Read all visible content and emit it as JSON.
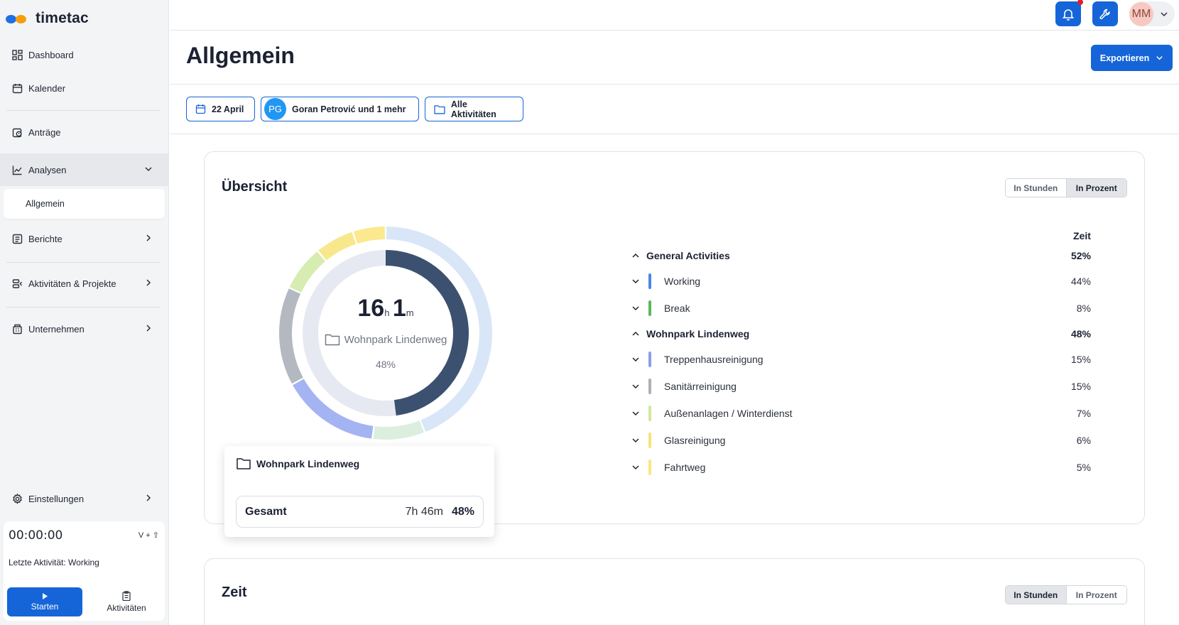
{
  "app": {
    "name": "timetac"
  },
  "sidebar": {
    "items": [
      {
        "label": "Dashboard",
        "icon": "dashboard-icon"
      },
      {
        "label": "Kalender",
        "icon": "calendar-icon"
      },
      {
        "label": "Anträge",
        "icon": "request-icon"
      },
      {
        "label": "Analysen",
        "icon": "chart-icon"
      },
      {
        "label": "Berichte",
        "icon": "report-icon"
      },
      {
        "label": "Aktivitäten & Projekte",
        "icon": "activities-icon"
      },
      {
        "label": "Unternehmen",
        "icon": "company-icon"
      },
      {
        "label": "Einstellungen",
        "icon": "settings-icon"
      }
    ],
    "subitem": "Allgemein",
    "timer": {
      "value": "00:00:00",
      "shortcut": "V + ⇧",
      "last_activity": "Letzte Aktivität: Working",
      "start_label": "Starten",
      "activities_label": "Aktivitäten"
    }
  },
  "topbar": {
    "avatar_initials": "MM"
  },
  "page": {
    "title": "Allgemein",
    "export_label": "Exportieren"
  },
  "filters": {
    "date": "22 April",
    "user_initials": "PG",
    "user": "Goran Petrović und 1 mehr",
    "activities": "Alle Aktivitäten"
  },
  "overview": {
    "title": "Übersicht",
    "toggle": [
      "In Stunden",
      "In Prozent"
    ],
    "toggle_active": "In Prozent",
    "center": {
      "hours": "16",
      "hours_unit": "h",
      "minutes": "1",
      "minutes_unit": "m",
      "project": "Wohnpark Lindenweg",
      "percent": "48%"
    },
    "tooltip": {
      "title": "Wohnpark Lindenweg",
      "total_label": "Gesamt",
      "total_time": "7h 46m",
      "total_percent": "48%"
    },
    "table_header": "Zeit",
    "groups": [
      {
        "name": "General Activities",
        "percent": "52%",
        "items": [
          {
            "name": "Working",
            "percent": "44%",
            "color": "#4a86e8"
          },
          {
            "name": "Break",
            "percent": "8%",
            "color": "#5cb85c"
          }
        ]
      },
      {
        "name": "Wohnpark Lindenweg",
        "percent": "48%",
        "items": [
          {
            "name": "Treppenhausreinigung",
            "percent": "15%",
            "color": "#8f9ee8"
          },
          {
            "name": "Sanitärreinigung",
            "percent": "15%",
            "color": "#aab0b8"
          },
          {
            "name": "Außenanlagen / Winterdienst",
            "percent": "7%",
            "color": "#cfe8a0"
          },
          {
            "name": "Glasreinigung",
            "percent": "6%",
            "color": "#f7e37a"
          },
          {
            "name": "Fahrtweg",
            "percent": "5%",
            "color": "#f9e67f"
          }
        ]
      }
    ],
    "donut_inner": [
      {
        "name": "Wohnpark Lindenweg",
        "value": 48,
        "color": "#3c5170"
      },
      {
        "name": "General Activities",
        "value": 52,
        "color": "#e6e9f1"
      }
    ],
    "donut_outer": [
      {
        "name": "Working",
        "value": 44,
        "color": "#d8e6f8"
      },
      {
        "name": "Break",
        "value": 8,
        "color": "#dcefde"
      },
      {
        "name": "Treppenhausreinigung",
        "value": 15,
        "color": "#a4b3f2"
      },
      {
        "name": "Sanitärreinigung",
        "value": 15,
        "color": "#b4b9c1"
      },
      {
        "name": "Außenanlagen / Winterdienst",
        "value": 7,
        "color": "#d6ecb0"
      },
      {
        "name": "Glasreinigung",
        "value": 6,
        "color": "#f8e88d"
      },
      {
        "name": "Fahrtweg",
        "value": 5,
        "color": "#fae98f"
      }
    ]
  },
  "zeit": {
    "title": "Zeit",
    "toggle": [
      "In Stunden",
      "In Prozent"
    ],
    "toggle_active": "In Stunden"
  }
}
